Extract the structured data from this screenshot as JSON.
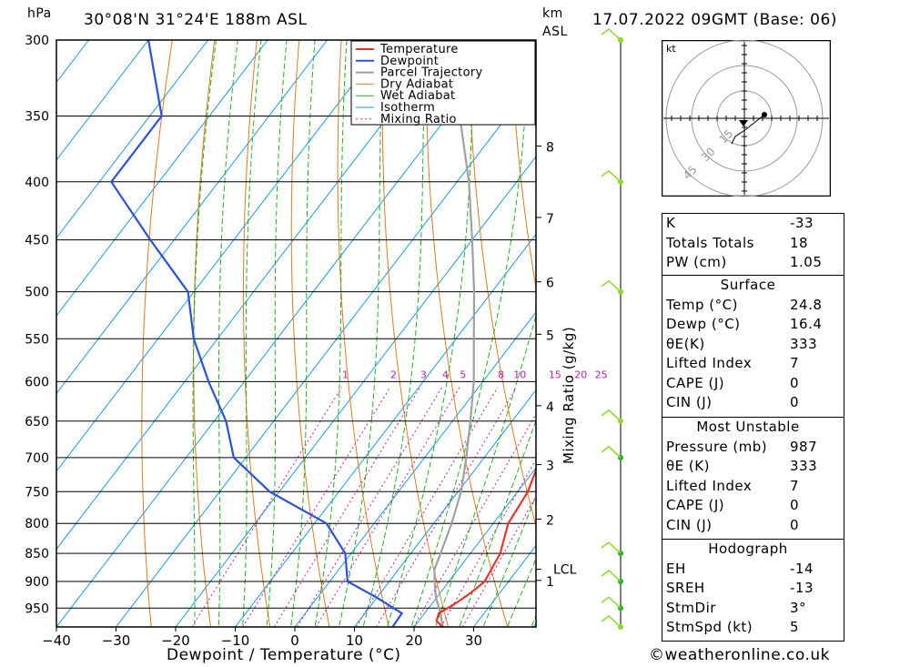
{
  "header": {
    "pressure_unit": "hPa",
    "location": "30°08'N 31°24'E 188m ASL",
    "height_unit_line1": "km",
    "height_unit_line2": "ASL",
    "datetime": "17.07.2022 09GMT (Base: 06)"
  },
  "chart_data": {
    "type": "skew-t log-p sounding",
    "xlabel": "Dewpoint / Temperature (°C)",
    "y2label": "Mixing Ratio (g/kg)",
    "x_ticks": [
      -40,
      -30,
      -20,
      -10,
      0,
      10,
      20,
      30
    ],
    "pressure_ticks": [
      300,
      350,
      400,
      450,
      500,
      550,
      600,
      650,
      700,
      750,
      800,
      850,
      900,
      950
    ],
    "pressure_range": [
      300,
      987
    ],
    "km_ticks": [
      "8",
      "7",
      "6",
      "5",
      "4",
      "3",
      "2",
      "1"
    ],
    "km_tick_pressures": [
      372,
      430,
      490,
      545,
      630,
      710,
      793,
      898
    ],
    "lcl_label": "LCL",
    "lcl_pressure": 878,
    "mixing_ratio_labels": [
      "1",
      "2",
      "3",
      "4",
      "5",
      "8",
      "10",
      "15",
      "20",
      "25"
    ],
    "mixing_ratio_values": [
      1,
      2,
      3,
      4,
      5,
      8,
      10,
      15,
      20,
      25
    ],
    "mixing_ratio_label_pressure": 600,
    "legend": [
      "Temperature",
      "Dewpoint",
      "Parcel Trajectory",
      "Dry Adiabat",
      "Wet Adiabat",
      "Isotherm",
      "Mixing Ratio"
    ],
    "legend_placement": "top-right of plot area",
    "colors": {
      "temperature": "#e8352a",
      "dewpoint": "#2a52d8",
      "parcel": "#a0a0a0",
      "dry_adiabat": "#e07a1a",
      "wet_adiabat": "#22b022",
      "isotherm": "#1a9ae0",
      "mixing_ratio": "#c020a0",
      "wind": "#88dd22"
    },
    "series": [
      {
        "name": "Temperature",
        "points": [
          [
            987,
            24.8
          ],
          [
            975,
            23
          ],
          [
            960,
            22.4
          ],
          [
            940,
            24
          ],
          [
            920,
            25.2
          ],
          [
            900,
            26
          ],
          [
            880,
            25.6
          ],
          [
            850,
            25
          ],
          [
            800,
            22.5
          ],
          [
            750,
            21.7
          ],
          [
            700,
            19.5
          ],
          [
            650,
            15.5
          ],
          [
            600,
            10.5
          ],
          [
            550,
            5
          ],
          [
            500,
            -1
          ],
          [
            450,
            -8.5
          ],
          [
            400,
            -15
          ],
          [
            370,
            -19
          ],
          [
            355,
            -22
          ]
        ]
      },
      {
        "name": "Dewpoint",
        "points": [
          [
            987,
            16.4
          ],
          [
            960,
            16.2
          ],
          [
            930,
            10
          ],
          [
            900,
            3
          ],
          [
            850,
            -1
          ],
          [
            800,
            -8
          ],
          [
            750,
            -21.6
          ],
          [
            700,
            -32
          ],
          [
            650,
            -38
          ],
          [
            600,
            -46
          ],
          [
            550,
            -54
          ],
          [
            500,
            -61
          ],
          [
            450,
            -74
          ],
          [
            400,
            -88
          ],
          [
            350,
            -88
          ],
          [
            300,
            -100
          ]
        ]
      },
      {
        "name": "Parcel Trajectory",
        "points": [
          [
            987,
            24.8
          ],
          [
            960,
            22.7
          ],
          [
            930,
            19.9
          ],
          [
            900,
            17.6
          ],
          [
            878,
            16
          ],
          [
            850,
            15
          ],
          [
            800,
            13
          ],
          [
            750,
            10.5
          ],
          [
            700,
            7
          ],
          [
            650,
            3
          ],
          [
            600,
            -1.5
          ],
          [
            550,
            -7
          ],
          [
            500,
            -13
          ],
          [
            450,
            -20
          ],
          [
            400,
            -28
          ],
          [
            350,
            -38
          ],
          [
            300,
            -50
          ]
        ]
      }
    ],
    "wind_barbs_pressures": [
      300,
      400,
      500,
      650,
      700,
      850,
      900,
      950,
      987
    ]
  },
  "hodograph": {
    "unit": "kt",
    "ring_labels": [
      "15",
      "30",
      "45"
    ]
  },
  "indices": {
    "k_label": "K",
    "k_value": "-33",
    "tt_label": "Totals Totals",
    "tt_value": "18",
    "pw_label": "PW (cm)",
    "pw_value": "1.05"
  },
  "surface": {
    "title": "Surface",
    "temp_label": "Temp (°C)",
    "temp_value": "24.8",
    "dewp_label": "Dewp (°C)",
    "dewp_value": "16.4",
    "thetae_label": "θE(K)",
    "thetae_value": "333",
    "li_label": "Lifted Index",
    "li_value": "7",
    "cape_label": "CAPE (J)",
    "cape_value": "0",
    "cin_label": "CIN (J)",
    "cin_value": "0"
  },
  "most_unstable": {
    "title": "Most Unstable",
    "pressure_label": "Pressure (mb)",
    "pressure_value": "987",
    "thetae_label": "θE (K)",
    "thetae_value": "333",
    "li_label": "Lifted Index",
    "li_value": "7",
    "cape_label": "CAPE (J)",
    "cape_value": "0",
    "cin_label": "CIN (J)",
    "cin_value": "0"
  },
  "hodograph_params": {
    "title": "Hodograph",
    "eh_label": "EH",
    "eh_value": "-14",
    "sreh_label": "SREH",
    "sreh_value": "-13",
    "stmdir_label": "StmDir",
    "stmdir_value": "3°",
    "stmspd_label": "StmSpd (kt)",
    "stmspd_value": "5"
  },
  "credit": "©weatheronline.co.uk"
}
